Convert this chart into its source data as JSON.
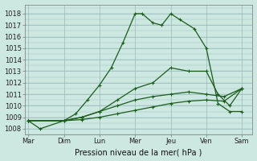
{
  "background_color": "#cce8e0",
  "grid_color": "#99bbbb",
  "line_color": "#1a5c1a",
  "xlabel": "Pression niveau de la mer( hPa )",
  "x_labels": [
    "Mar",
    "Dim",
    "Lun",
    "Mer",
    "Jeu",
    "Ven",
    "Sam"
  ],
  "x_positions": [
    0,
    1,
    2,
    3,
    4,
    5,
    6
  ],
  "xlim": [
    -0.1,
    6.3
  ],
  "ylim": [
    1007.5,
    1018.8
  ],
  "yticks": [
    1008,
    1009,
    1010,
    1011,
    1012,
    1013,
    1014,
    1015,
    1016,
    1017,
    1018
  ],
  "lines": [
    {
      "x": [
        0,
        0.33,
        1.0,
        1.33,
        1.66,
        2.0,
        2.33,
        2.66,
        3.0,
        3.2,
        3.5,
        3.75,
        4.0,
        4.25,
        4.66,
        5.0,
        5.33,
        5.66,
        6.0
      ],
      "y": [
        1008.7,
        1008.0,
        1008.7,
        1009.3,
        1010.5,
        1011.8,
        1013.3,
        1015.5,
        1018.0,
        1018.0,
        1017.2,
        1017.0,
        1018.0,
        1017.5,
        1016.7,
        1015.0,
        1010.2,
        1009.5,
        1009.5
      ]
    },
    {
      "x": [
        0,
        1.0,
        1.5,
        2.0,
        2.5,
        3.0,
        3.5,
        4.0,
        4.5,
        5.0,
        5.33,
        5.66,
        6.0
      ],
      "y": [
        1008.7,
        1008.7,
        1009.0,
        1009.5,
        1010.5,
        1011.5,
        1012.0,
        1013.3,
        1013.0,
        1013.0,
        1011.0,
        1010.0,
        1011.5
      ]
    },
    {
      "x": [
        0,
        1.0,
        1.5,
        2.0,
        2.5,
        3.0,
        3.5,
        4.0,
        4.5,
        5.0,
        5.5,
        6.0
      ],
      "y": [
        1008.7,
        1008.7,
        1009.0,
        1009.5,
        1010.0,
        1010.5,
        1010.8,
        1011.0,
        1011.2,
        1011.0,
        1010.8,
        1011.5
      ]
    },
    {
      "x": [
        0,
        1.0,
        1.5,
        2.0,
        2.5,
        3.0,
        3.5,
        4.0,
        4.5,
        5.0,
        5.5,
        6.0
      ],
      "y": [
        1008.7,
        1008.7,
        1008.8,
        1009.0,
        1009.3,
        1009.6,
        1009.9,
        1010.2,
        1010.4,
        1010.5,
        1010.4,
        1011.5
      ]
    }
  ]
}
